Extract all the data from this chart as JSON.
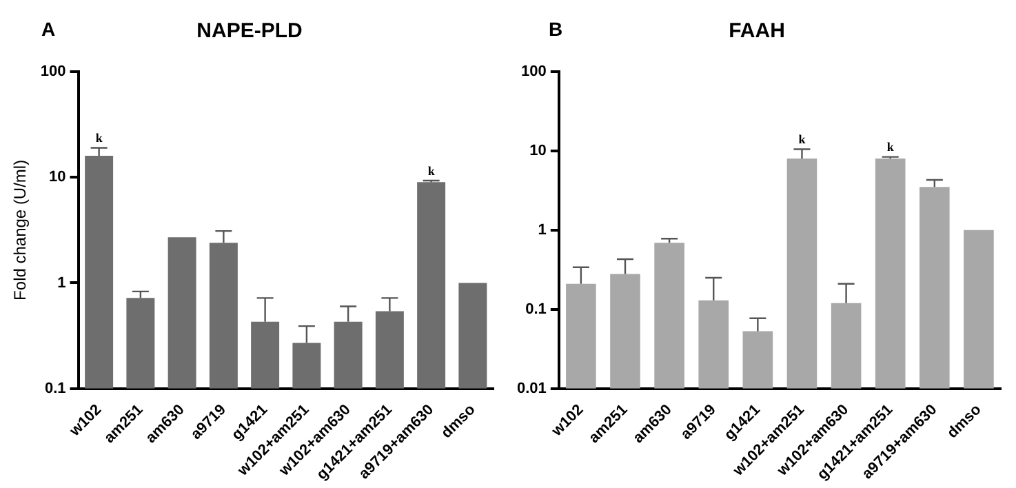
{
  "chart_data": [
    {
      "type": "bar",
      "title": "NAPE-PLD",
      "ylabel": "Fold change (U/ml)",
      "categories": [
        "w102",
        "am251",
        "am630",
        "a9719",
        "g1421",
        "w102+am251",
        "w102+am630",
        "g1421+am251",
        "a9719+am630",
        "dmso"
      ],
      "values": [
        16,
        0.72,
        2.7,
        2.4,
        0.43,
        0.27,
        0.43,
        0.54,
        9,
        1
      ],
      "errors": [
        [
          16,
          19
        ],
        [
          0.72,
          0.83
        ],
        null,
        [
          2.4,
          3.1
        ],
        [
          0.43,
          0.72
        ],
        [
          0.27,
          0.39
        ],
        [
          0.43,
          0.6
        ],
        [
          0.54,
          0.72
        ],
        [
          9,
          9.3
        ],
        null
      ],
      "color": "#6e6e6e",
      "log": true,
      "ylim": [
        0.1,
        100
      ],
      "yticks": [
        0.1,
        1,
        10,
        100
      ],
      "grid": false,
      "legend": false,
      "annotations": [
        "A",
        {
          "text": "k",
          "x": "w102",
          "y": 19
        },
        {
          "text": "k",
          "x": "a9719+am630",
          "y": 9.3
        }
      ]
    },
    {
      "type": "bar",
      "title": "FAAH",
      "categories": [
        "w102",
        "am251",
        "am630",
        "a9719",
        "g1421",
        "w102+am251",
        "w102+am630",
        "g1421+am251",
        "a9719+am630",
        "dmso"
      ],
      "values": [
        0.21,
        0.28,
        0.69,
        0.13,
        0.053,
        8,
        0.12,
        8,
        3.5,
        1
      ],
      "errors": [
        [
          0.21,
          0.34
        ],
        [
          0.28,
          0.43
        ],
        [
          0.69,
          0.78
        ],
        [
          0.13,
          0.25
        ],
        [
          0.053,
          0.077
        ],
        [
          8,
          10.5
        ],
        [
          0.12,
          0.21
        ],
        [
          8,
          8.4
        ],
        [
          3.5,
          4.3
        ],
        null
      ],
      "color": "#a8a8a8",
      "log": true,
      "ylim": [
        0.01,
        100
      ],
      "yticks": [
        0.01,
        0.1,
        1,
        10,
        100
      ],
      "grid": false,
      "legend": false,
      "annotations": [
        "B",
        {
          "text": "k",
          "x": "w102+am251",
          "y": 10.5
        },
        {
          "text": "k",
          "x": "g1421+am251",
          "y": 8.4
        }
      ]
    }
  ]
}
